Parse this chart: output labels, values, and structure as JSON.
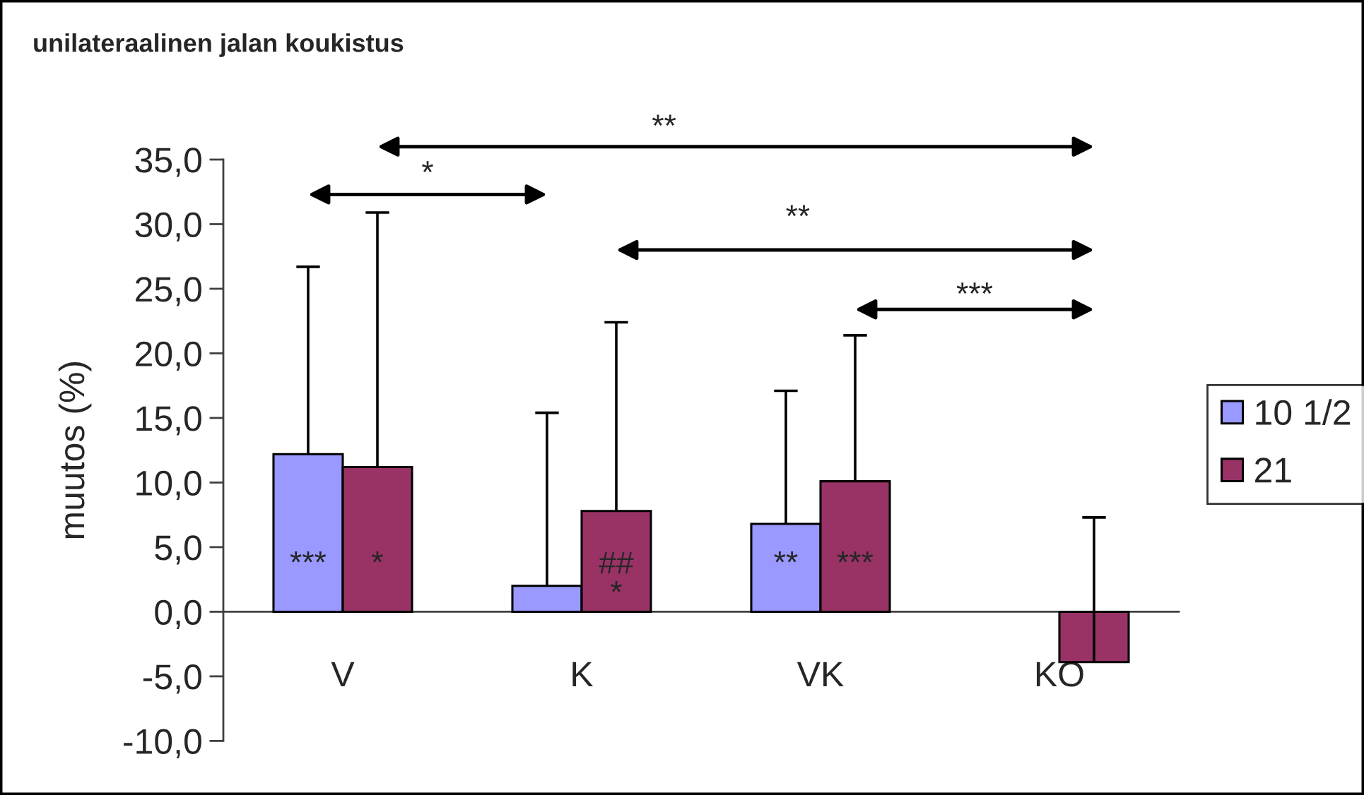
{
  "chart_data": {
    "type": "bar",
    "title": "unilateraalinen jalan koukistus",
    "ylabel": "muutos (%)",
    "categories": [
      "V",
      "K",
      "VK",
      "KO"
    ],
    "series": [
      {
        "name": "10 1/2",
        "color": "#9999ff",
        "values": [
          12.2,
          2.0,
          6.8,
          null
        ],
        "errors": [
          [
            12.2,
            26.7
          ],
          [
            2.0,
            15.4
          ],
          [
            6.8,
            17.1
          ],
          null
        ]
      },
      {
        "name": "21",
        "color": "#993366",
        "values": [
          11.2,
          7.8,
          10.1,
          -3.9
        ],
        "errors": [
          [
            11.2,
            30.9
          ],
          [
            7.8,
            22.4
          ],
          [
            10.1,
            21.4
          ],
          [
            -3.9,
            7.3
          ]
        ]
      }
    ],
    "ylim": [
      -10,
      35
    ],
    "yticks": [
      {
        "value": -10,
        "label": "-10,0"
      },
      {
        "value": -5,
        "label": "-5,0"
      },
      {
        "value": 0,
        "label": "0,0"
      },
      {
        "value": 5,
        "label": "5,0"
      },
      {
        "value": 10,
        "label": "10,0"
      },
      {
        "value": 15,
        "label": "15,0"
      },
      {
        "value": 20,
        "label": "20,0"
      },
      {
        "value": 25,
        "label": "25,0"
      },
      {
        "value": 30,
        "label": "30,0"
      },
      {
        "value": 35,
        "label": "35,0"
      }
    ],
    "legend": "right",
    "annotations": [
      "**",
      "*",
      "**",
      "***",
      "***",
      "*",
      "##\n*",
      "**",
      "***"
    ]
  }
}
